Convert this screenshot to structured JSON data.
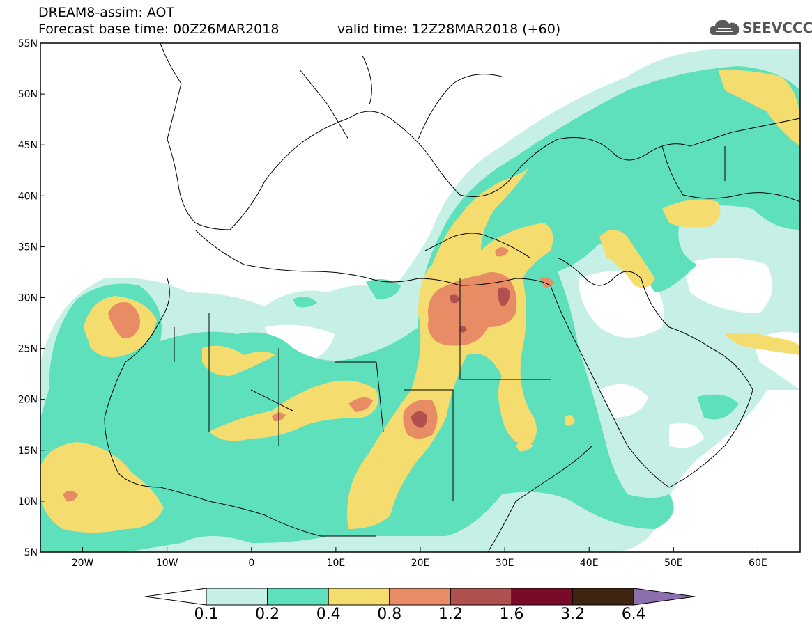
{
  "header": {
    "line1": "DREAM8-assim: AOT",
    "line2a": "Forecast base time: 00Z26MAR2018",
    "line2b": "valid time: 12Z28MAR2018 (+60)"
  },
  "logo": {
    "text": "SEEVCCC",
    "icon": "cloud-icon"
  },
  "map": {
    "lat_labels": [
      "55N",
      "50N",
      "45N",
      "40N",
      "35N",
      "30N",
      "25N",
      "20N",
      "15N",
      "10N",
      "5N"
    ],
    "lon_labels": [
      "20W",
      "10W",
      "0",
      "10E",
      "20E",
      "30E",
      "40E",
      "50E",
      "60E"
    ],
    "lon_range": [
      -25,
      65
    ],
    "lat_range": [
      5,
      55
    ]
  },
  "colorbar": {
    "labels": [
      "0.1",
      "0.2",
      "0.4",
      "0.8",
      "1.2",
      "1.6",
      "3.2",
      "6.4"
    ],
    "colors": [
      "#ffffff",
      "#c6f0e6",
      "#5fe0bd",
      "#f5dc6e",
      "#e88c66",
      "#b05050",
      "#7a0a28",
      "#3d2510",
      "#8c6fad"
    ]
  }
}
